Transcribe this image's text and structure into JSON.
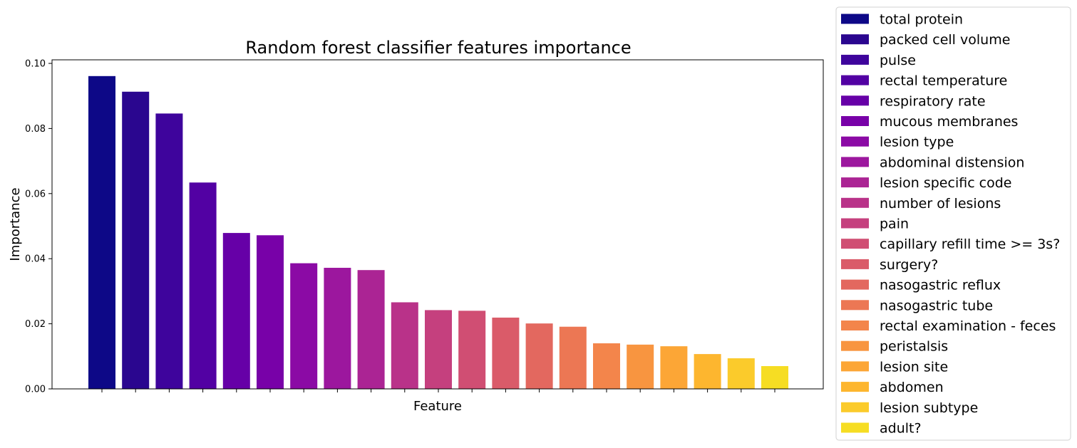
{
  "chart_data": {
    "type": "bar",
    "title": "Random forest classifier features importance",
    "xlabel": "Feature",
    "ylabel": "Importance",
    "ylim": [
      0,
      0.1
    ],
    "yticks": [
      0.0,
      0.02,
      0.04,
      0.06,
      0.08,
      0.1
    ],
    "ytick_labels": [
      "0.00",
      "0.02",
      "0.04",
      "0.06",
      "0.08",
      "0.10"
    ],
    "categories": [
      "total protein",
      "packed cell volume",
      "pulse",
      "rectal temperature",
      "respiratory rate",
      "mucous membranes",
      "lesion type",
      "abdominal distension",
      "lesion specific code",
      "number of lesions",
      "pain",
      "capillary refill time >= 3s?",
      "surgery?",
      "nasogastric reflux",
      "nasogastric tube",
      "rectal examination - feces",
      "peristalsis",
      "lesion site",
      "abdomen",
      "lesion subtype",
      "adult?"
    ],
    "values": [
      0.0961,
      0.0913,
      0.0846,
      0.0634,
      0.0479,
      0.0472,
      0.0386,
      0.0372,
      0.0365,
      0.0266,
      0.0242,
      0.024,
      0.0219,
      0.0201,
      0.0191,
      0.014,
      0.0136,
      0.0131,
      0.0107,
      0.0094,
      0.007
    ],
    "colors": [
      "#0d0887",
      "#2a068f",
      "#3e049c",
      "#5201a3",
      "#6600a7",
      "#7801a8",
      "#8b0aa5",
      "#9c179e",
      "#ab2494",
      "#b93289",
      "#c5407e",
      "#d04e73",
      "#da5b69",
      "#e3685f",
      "#ec7754",
      "#f3854b",
      "#f89540",
      "#fca636",
      "#fdb62f",
      "#fbcb2b",
      "#f6dd23"
    ],
    "legend_position": "outside-right",
    "grid": false
  }
}
